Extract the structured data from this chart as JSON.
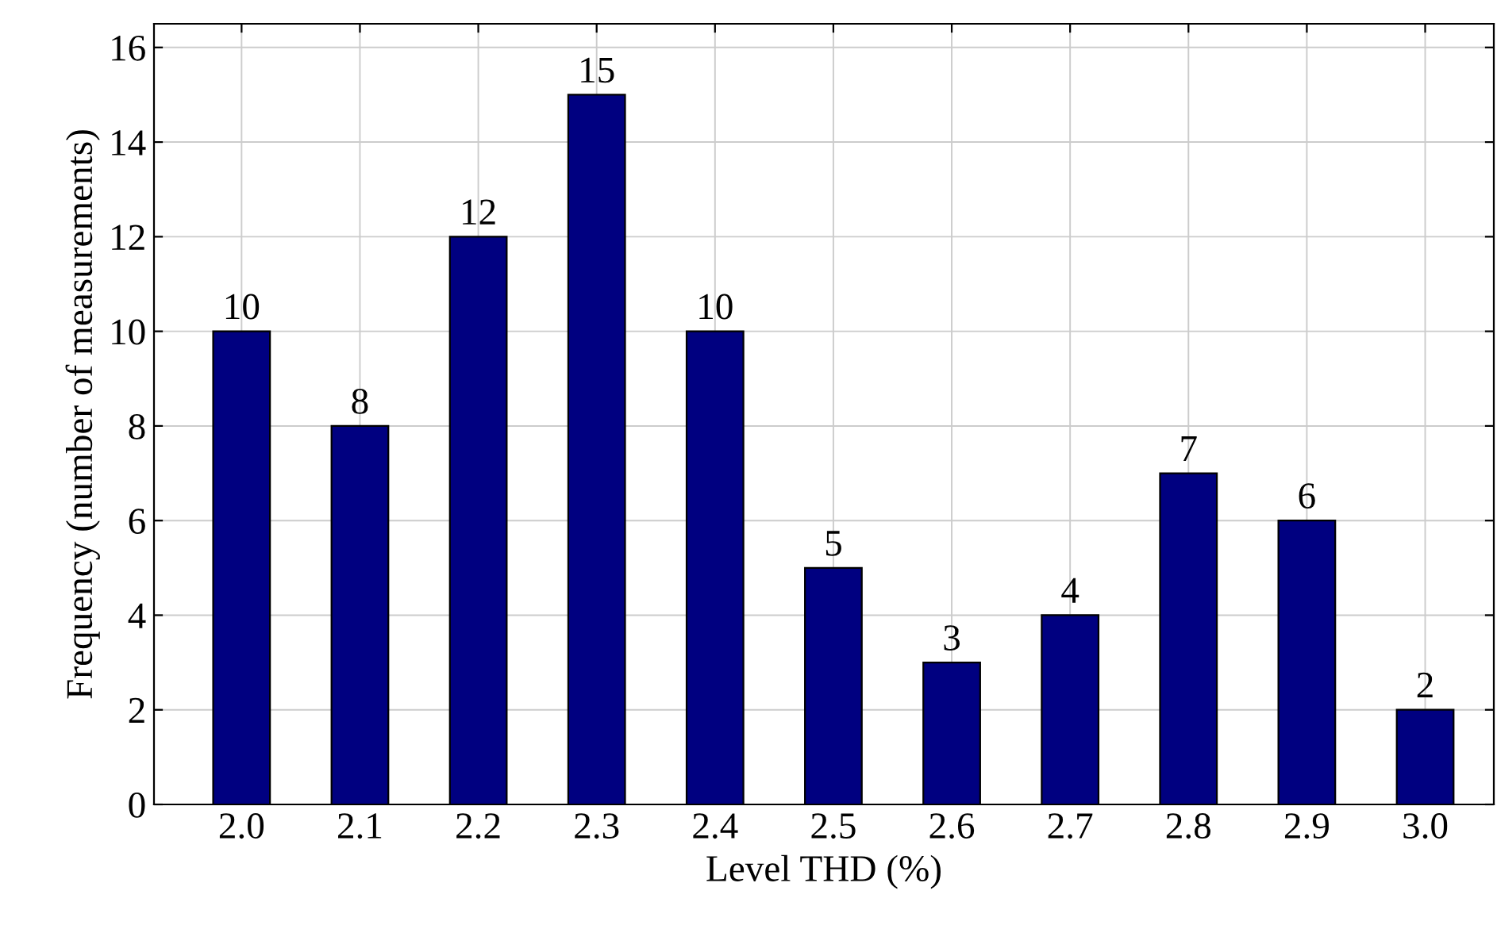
{
  "chart_data": {
    "type": "bar",
    "xlabel": "Level THD (%)",
    "ylabel": "Frequency (number of measurements)",
    "x": [
      2.0,
      2.1,
      2.2,
      2.3,
      2.4,
      2.5,
      2.6,
      2.7,
      2.8,
      2.9,
      3.0
    ],
    "values": [
      10,
      8,
      12,
      15,
      10,
      5,
      3,
      4,
      7,
      6,
      2
    ],
    "color": "#000080",
    "xlim": [
      1.926,
      3.058
    ],
    "xticks": [
      {
        "value": 2.0,
        "label": "2.0"
      },
      {
        "value": 2.1,
        "label": "2.1"
      },
      {
        "value": 2.2,
        "label": "2.2"
      },
      {
        "value": 2.3,
        "label": "2.3"
      },
      {
        "value": 2.4,
        "label": "2.4"
      },
      {
        "value": 2.5,
        "label": "2.5"
      },
      {
        "value": 2.6,
        "label": "2.6"
      },
      {
        "value": 2.7,
        "label": "2.7"
      },
      {
        "value": 2.8,
        "label": "2.8"
      },
      {
        "value": 2.9,
        "label": "2.9"
      },
      {
        "value": 3.0,
        "label": "3.0"
      }
    ],
    "ylim": [
      0,
      16.5
    ],
    "yticks": [
      0,
      2,
      4,
      6,
      8,
      10,
      12,
      14,
      16
    ],
    "grid": true,
    "data_labels": true
  }
}
